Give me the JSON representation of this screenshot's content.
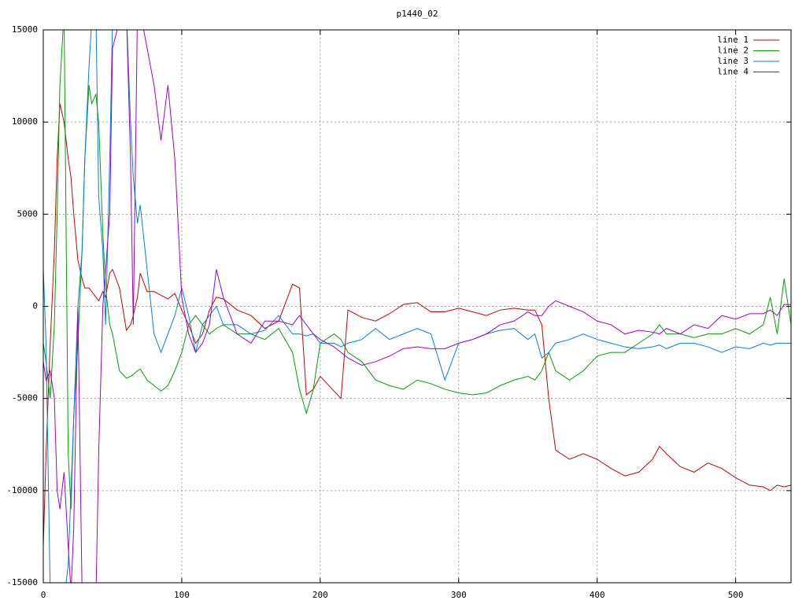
{
  "chart_data": {
    "type": "line",
    "title": "p1440_02",
    "x": [
      0,
      2,
      5,
      8,
      10,
      12,
      15,
      18,
      20,
      22,
      25,
      28,
      30,
      33,
      35,
      38,
      40,
      43,
      45,
      48,
      50,
      55,
      60,
      63,
      65,
      68,
      70,
      75,
      80,
      85,
      90,
      95,
      100,
      105,
      110,
      115,
      120,
      125,
      130,
      140,
      150,
      160,
      170,
      180,
      185,
      190,
      195,
      200,
      210,
      215,
      220,
      230,
      240,
      250,
      260,
      270,
      280,
      290,
      300,
      310,
      320,
      330,
      340,
      350,
      355,
      360,
      365,
      370,
      380,
      390,
      400,
      410,
      420,
      430,
      440,
      445,
      450,
      460,
      470,
      480,
      490,
      500,
      510,
      520,
      525,
      530,
      535,
      540
    ],
    "series": [
      {
        "name": "line 1",
        "color": "#cc0000",
        "values": [
          -13000,
          -8000,
          -2000,
          3000,
          8000,
          11000,
          10000,
          8000,
          7000,
          5000,
          2500,
          1500,
          1000,
          1000,
          800,
          500,
          300,
          800,
          500,
          1800,
          2000,
          1000,
          -1300,
          -1000,
          -500,
          500,
          1800,
          800,
          800,
          600,
          400,
          700,
          -200,
          -1000,
          -2000,
          -1500,
          -200,
          500,
          400,
          -200,
          -500,
          -1200,
          -800,
          1200,
          1000,
          -4800,
          -4500,
          -3800,
          -4600,
          -5000,
          -200,
          -600,
          -800,
          -400,
          100,
          200,
          -300,
          -300,
          -100,
          -300,
          -500,
          -200,
          -100,
          -200,
          -200,
          -1000,
          -5000,
          -7800,
          -8300,
          -8000,
          -8300,
          -8800,
          -9200,
          -9000,
          -8300,
          -7600,
          -8000,
          -8700,
          -9000,
          -8500,
          -8800,
          -9300,
          -9700,
          -9800,
          -10000,
          -9700,
          -9800,
          -9700
        ]
      },
      {
        "name": "line 2",
        "color": "#00a000",
        "values": [
          -2000,
          -3000,
          -5000,
          -1000,
          5000,
          12000,
          16000,
          -8000,
          -11000,
          -6000,
          -2000,
          3000,
          8000,
          12000,
          11000,
          11500,
          10000,
          4000,
          1000,
          -1000,
          -1500,
          -3500,
          -3900,
          -3800,
          -3700,
          -3500,
          -3400,
          -4000,
          -4300,
          -4600,
          -4300,
          -3500,
          -2500,
          -1000,
          -500,
          -1000,
          -1500,
          -1200,
          -1000,
          -1500,
          -1500,
          -1800,
          -1200,
          -2500,
          -4500,
          -5800,
          -4500,
          -2000,
          -1500,
          -1800,
          -2500,
          -3000,
          -4000,
          -4300,
          -4500,
          -4000,
          -4200,
          -4500,
          -4700,
          -4800,
          -4700,
          -4300,
          -4000,
          -3800,
          -4000,
          -3500,
          -2500,
          -3500,
          -4000,
          -3500,
          -2700,
          -2500,
          -2500,
          -2000,
          -1500,
          -1000,
          -1500,
          -1500,
          -1700,
          -1500,
          -1500,
          -1200,
          -1500,
          -1000,
          500,
          -1500,
          1500,
          -1000
        ]
      },
      {
        "name": "line 3",
        "color": "#0080e0",
        "values": [
          2000,
          -2000,
          -15500,
          -16000,
          -16000,
          -16000,
          -16000,
          -14000,
          -10000,
          -6000,
          0,
          3000,
          8000,
          13000,
          15500,
          16000,
          6000,
          3000,
          -1000,
          8000,
          15500,
          16000,
          16000,
          10000,
          7000,
          4500,
          5500,
          2000,
          -1500,
          -2500,
          -1500,
          -500,
          1000,
          -500,
          -2500,
          -1000,
          -500,
          0,
          -1000,
          -1000,
          -1500,
          -1300,
          -500,
          -1500,
          -1500,
          -1600,
          -1500,
          -2000,
          -2000,
          -2200,
          -2000,
          -1800,
          -1200,
          -1800,
          -1500,
          -1200,
          -1500,
          -4000,
          -2000,
          -1800,
          -1500,
          -1300,
          -1200,
          -1800,
          -1500,
          -2800,
          -2500,
          -2000,
          -1800,
          -1500,
          -1800,
          -2000,
          -2200,
          -2300,
          -2200,
          -2100,
          -2300,
          -2000,
          -2000,
          -2200,
          -2500,
          -2200,
          -2300,
          -2000,
          -2100,
          -2000,
          -2000,
          -2000
        ]
      },
      {
        "name": "line 4",
        "color": "#a000d0",
        "values": [
          -3000,
          -4000,
          -3500,
          -5000,
          -10000,
          -11000,
          -9000,
          -13000,
          -15500,
          -12000,
          0,
          -15500,
          -16000,
          -16000,
          -16000,
          -16000,
          -8000,
          0,
          2000,
          5000,
          14000,
          15500,
          16000,
          8000,
          -1000,
          16000,
          16000,
          14000,
          12000,
          9000,
          12000,
          8000,
          500,
          -1500,
          -2500,
          -2000,
          -1000,
          2000,
          500,
          -1500,
          -2000,
          -800,
          -800,
          -1000,
          -500,
          -1000,
          -1500,
          -1800,
          -2200,
          -2500,
          -2800,
          -3200,
          -3000,
          -2700,
          -2300,
          -2200,
          -2300,
          -2300,
          -2000,
          -1800,
          -1500,
          -1000,
          -800,
          -300,
          -500,
          -500,
          0,
          300,
          0,
          -300,
          -800,
          -1000,
          -1500,
          -1300,
          -1400,
          -1500,
          -1200,
          -1500,
          -1000,
          -1200,
          -500,
          -700,
          -400,
          -400,
          -200,
          -500,
          100,
          100
        ]
      }
    ],
    "xlim": [
      0,
      540
    ],
    "xticks": [
      0,
      100,
      200,
      300,
      400,
      500
    ],
    "ylim": [
      -15000,
      15000
    ],
    "yticks": [
      -15000,
      -10000,
      -5000,
      0,
      5000,
      10000,
      15000
    ],
    "grid": true,
    "legend": "top-right"
  }
}
